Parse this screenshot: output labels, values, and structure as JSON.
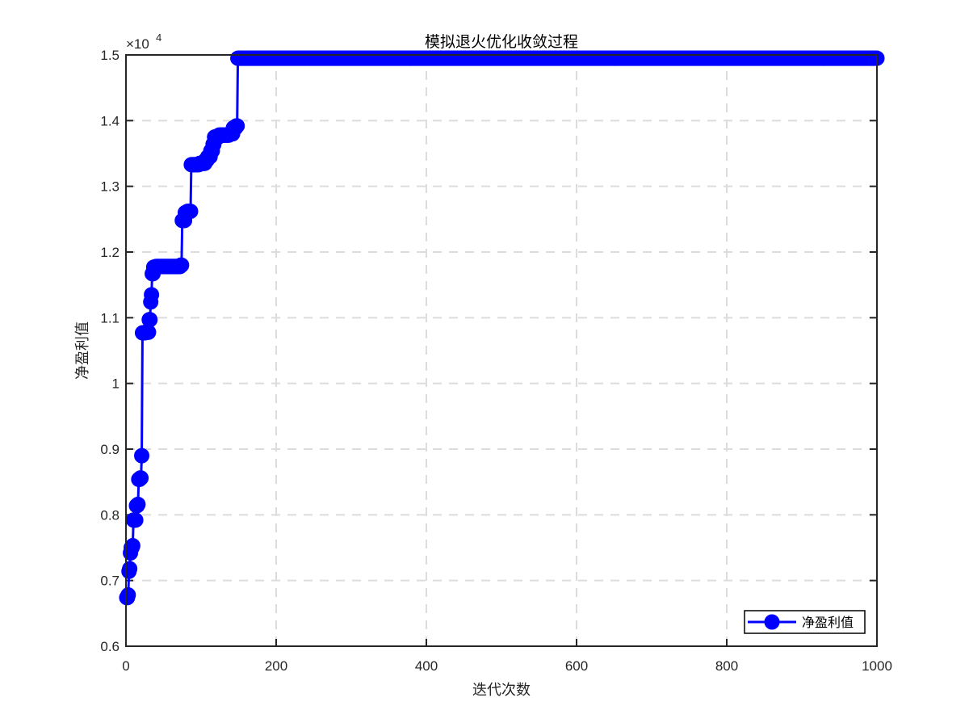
{
  "chart_data": {
    "type": "line",
    "title": "模拟退火优化收敛过程",
    "xlabel": "迭代次数",
    "ylabel": "净盈利值",
    "exponent_base": "×10",
    "exponent_power": "4",
    "xlim": [
      0,
      1000
    ],
    "ylim": [
      0.6,
      1.5
    ],
    "x_ticks": [
      0,
      200,
      400,
      600,
      800,
      1000
    ],
    "x_tick_labels": [
      "0",
      "200",
      "400",
      "600",
      "800",
      "1000"
    ],
    "y_ticks": [
      0.6,
      0.7,
      0.8,
      0.9,
      1.0,
      1.1,
      1.2,
      1.3,
      1.4,
      1.5
    ],
    "y_tick_labels": [
      "0.6",
      "0.7",
      "0.8",
      "0.9",
      "1",
      "1.1",
      "1.2",
      "1.3",
      "1.4",
      "1.5"
    ],
    "grid": true,
    "legend_position": "bottom-right",
    "series": [
      {
        "name": "净盈利值",
        "color": "#0000ff",
        "marker": "circle",
        "step_points": [
          [
            1,
            0.674
          ],
          [
            3,
            0.678
          ],
          [
            4,
            0.714
          ],
          [
            5,
            0.718
          ],
          [
            6,
            0.742
          ],
          [
            7,
            0.75
          ],
          [
            9,
            0.753
          ],
          [
            10,
            0.792
          ],
          [
            13,
            0.792
          ],
          [
            14,
            0.814
          ],
          [
            16,
            0.816
          ],
          [
            17,
            0.854
          ],
          [
            19,
            0.856
          ],
          [
            21,
            0.89
          ],
          [
            22,
            1.077
          ],
          [
            26,
            1.078
          ],
          [
            30,
            1.078
          ],
          [
            31,
            1.097
          ],
          [
            33,
            1.124
          ],
          [
            34,
            1.135
          ],
          [
            35,
            1.167
          ],
          [
            37,
            1.177
          ],
          [
            40,
            1.178
          ],
          [
            73,
            1.18
          ],
          [
            75,
            1.248
          ],
          [
            79,
            1.26
          ],
          [
            82,
            1.262
          ],
          [
            87,
            1.333
          ],
          [
            98,
            1.335
          ],
          [
            106,
            1.34
          ],
          [
            109,
            1.345
          ],
          [
            113,
            1.354
          ],
          [
            116,
            1.364
          ],
          [
            118,
            1.375
          ],
          [
            124,
            1.378
          ],
          [
            138,
            1.38
          ],
          [
            143,
            1.389
          ],
          [
            147,
            1.392
          ],
          [
            149,
            1.495
          ],
          [
            1000,
            1.495
          ]
        ]
      }
    ]
  }
}
